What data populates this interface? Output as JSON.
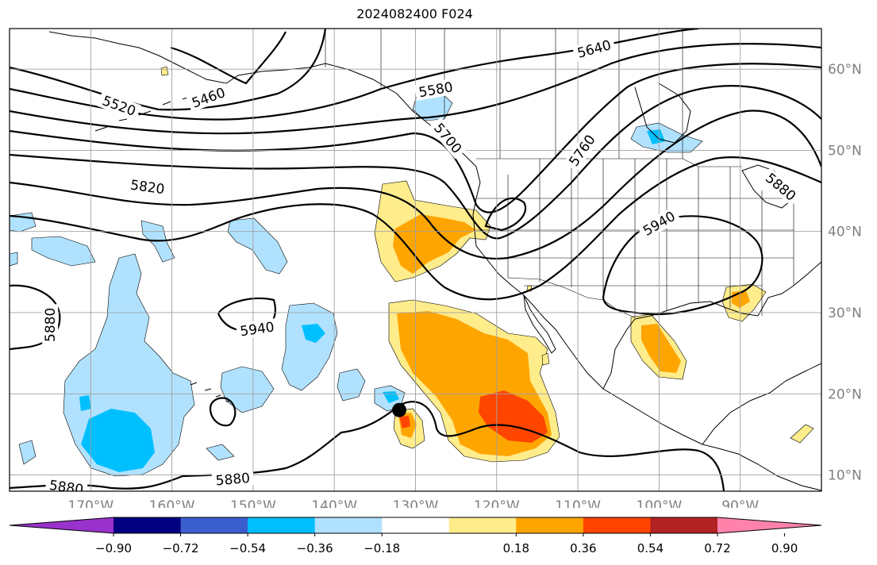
{
  "title": "2024082400 F024",
  "map": {
    "lon_range": [
      -180,
      -80
    ],
    "lat_range": [
      8,
      65
    ],
    "lon_ticks": [
      {
        "lon": -170,
        "label": "170°W"
      },
      {
        "lon": -160,
        "label": "160°W"
      },
      {
        "lon": -150,
        "label": "150°W"
      },
      {
        "lon": -140,
        "label": "140°W"
      },
      {
        "lon": -130,
        "label": "130°W"
      },
      {
        "lon": -120,
        "label": "120°W"
      },
      {
        "lon": -110,
        "label": "110°W"
      },
      {
        "lon": -100,
        "label": "100°W"
      },
      {
        "lon": -90,
        "label": "90°W"
      }
    ],
    "lat_ticks": [
      {
        "lat": 10,
        "label": "10°N"
      },
      {
        "lat": 20,
        "label": "20°N"
      },
      {
        "lat": 30,
        "label": "30°N"
      },
      {
        "lat": 40,
        "label": "40°N"
      },
      {
        "lat": 50,
        "label": "50°N"
      },
      {
        "lat": 60,
        "label": "60°N"
      }
    ],
    "gridlines": true,
    "tick_label_color": "#808080",
    "contour_labels": [
      {
        "text": "5520",
        "lon": -166.5,
        "lat": 55.5,
        "rot": 20
      },
      {
        "text": "5460",
        "lon": -155.5,
        "lat": 56.5,
        "rot": -20
      },
      {
        "text": "5580",
        "lon": -127.5,
        "lat": 57.5,
        "rot": -10
      },
      {
        "text": "5640",
        "lon": -108.0,
        "lat": 62.5,
        "rot": -15
      },
      {
        "text": "5700",
        "lon": -126.0,
        "lat": 51.5,
        "rot": 50
      },
      {
        "text": "5760",
        "lon": -109.5,
        "lat": 50.0,
        "rot": -55
      },
      {
        "text": "5820",
        "lon": -163.0,
        "lat": 45.5,
        "rot": 8
      },
      {
        "text": "5880",
        "lon": -85.0,
        "lat": 45.5,
        "rot": 40
      },
      {
        "text": "5940",
        "lon": -100.0,
        "lat": 41.0,
        "rot": -30
      },
      {
        "text": "5880",
        "lon": -175.0,
        "lat": 28.5,
        "rot": -90
      },
      {
        "text": "5940",
        "lon": -149.5,
        "lat": 28.0,
        "rot": -8
      },
      {
        "text": "5880",
        "lon": -173.0,
        "lat": 8.5,
        "rot": 8
      },
      {
        "text": "5880",
        "lon": -152.5,
        "lat": 9.5,
        "rot": -5
      }
    ],
    "marker": {
      "lon": -132.0,
      "lat": 18.0
    }
  },
  "colorbar": {
    "colors": [
      "#9932cc",
      "#000080",
      "#3a5fcd",
      "#00bfff",
      "#b0e2ff",
      "#ffffff",
      "#ffec8b",
      "#ffa500",
      "#ff4500",
      "#b22222",
      "#ff82ab"
    ],
    "ticks": [
      {
        "value": -0.9,
        "label": "−0.90"
      },
      {
        "value": -0.72,
        "label": "−0.72"
      },
      {
        "value": -0.54,
        "label": "−0.54"
      },
      {
        "value": -0.36,
        "label": "−0.36"
      },
      {
        "value": -0.18,
        "label": "−0.18"
      },
      {
        "value": 0.18,
        "label": "0.18"
      },
      {
        "value": 0.36,
        "label": "0.36"
      },
      {
        "value": 0.54,
        "label": "0.54"
      },
      {
        "value": 0.72,
        "label": "0.72"
      },
      {
        "value": 0.9,
        "label": "0.90"
      }
    ]
  }
}
